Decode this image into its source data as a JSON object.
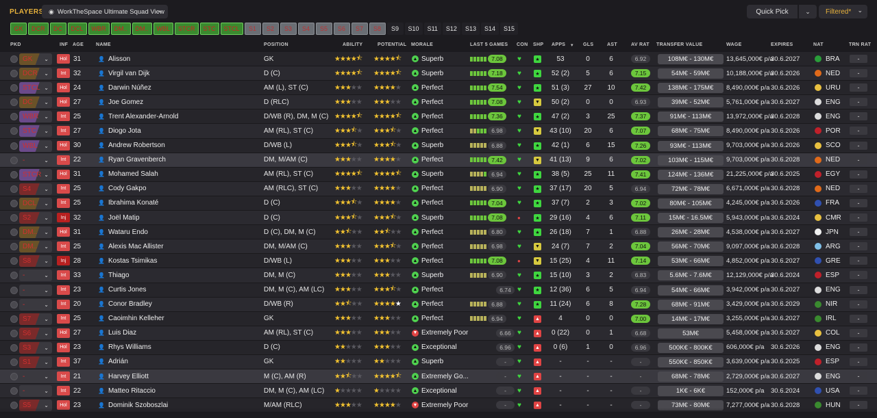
{
  "topbar": {
    "players_label": "PLAYERS",
    "view_name": "WorkTheSpace Ultimate Squad View",
    "quick_pick": "Quick Pick",
    "filtered": "Filtered*"
  },
  "position_filters": [
    {
      "label": "GK",
      "style": "green"
    },
    {
      "label": "DCR",
      "style": "green"
    },
    {
      "label": "DC",
      "style": "green"
    },
    {
      "label": "DCL",
      "style": "green"
    },
    {
      "label": "WBR",
      "style": "green"
    },
    {
      "label": "DM..",
      "style": "green"
    },
    {
      "label": "DM..",
      "style": "green"
    },
    {
      "label": "WBL",
      "style": "green"
    },
    {
      "label": "STCR",
      "style": "green"
    },
    {
      "label": "STC",
      "style": "green"
    },
    {
      "label": "STCL",
      "style": "green"
    },
    {
      "label": "S1",
      "style": "grey"
    },
    {
      "label": "S2",
      "style": "grey"
    },
    {
      "label": "S3",
      "style": "grey"
    },
    {
      "label": "S4",
      "style": "grey"
    },
    {
      "label": "S5",
      "style": "grey"
    },
    {
      "label": "S6",
      "style": "grey"
    },
    {
      "label": "S7",
      "style": "grey"
    },
    {
      "label": "S8",
      "style": "grey"
    },
    {
      "label": "S9",
      "style": "dark"
    },
    {
      "label": "S10",
      "style": "dark"
    },
    {
      "label": "S11",
      "style": "dark"
    },
    {
      "label": "S12",
      "style": "dark"
    },
    {
      "label": "S13",
      "style": "dark"
    },
    {
      "label": "S14",
      "style": "dark"
    },
    {
      "label": "S15",
      "style": "dark"
    }
  ],
  "columns": {
    "pkd": "PKD",
    "inf": "INF",
    "age": "AGE",
    "name": "NAME",
    "position": "POSITION",
    "ability": "ABILITY",
    "potential": "POTENTIAL",
    "morale": "MORALE",
    "last5": "LAST 5 GAMES",
    "con": "CON",
    "shp": "SHP",
    "apps": "APPS",
    "gls": "GLS",
    "ast": "AST",
    "avrat": "AV RAT",
    "tv": "TRANSFER VALUE",
    "wage": "WAGE",
    "expires": "EXPIRES",
    "nat": "NAT",
    "trn": "TRN RAT"
  },
  "players": [
    {
      "pkd": "GK",
      "pkd_style": "gold",
      "inf": "Hol",
      "age": "31",
      "name": "Alisson",
      "position": "GK",
      "ability": 4.5,
      "potential": 4.5,
      "morale": "Superb",
      "morale_type": "g",
      "last5": "ggggg",
      "l5rat": "7.08",
      "l5good": true,
      "con": "♥",
      "shp": "g",
      "apps": "53",
      "gls": "0",
      "ast": "6",
      "avrat": "6.92",
      "avgood": false,
      "tv": "108M€ - 130M€",
      "wage": "13,645,000€ p/a",
      "expires": "30.6.2027",
      "nat": "BRA",
      "flag": "#2a9d3a",
      "trn": "-"
    },
    {
      "pkd": "DCR",
      "pkd_style": "gold",
      "inf": "Int",
      "age": "32",
      "name": "Virgil van Dijk",
      "position": "D (C)",
      "ability": 4.5,
      "potential": 4.5,
      "morale": "Superb",
      "morale_type": "g",
      "last5": "ggggg",
      "l5rat": "7.18",
      "l5good": true,
      "con": "♥",
      "shp": "g",
      "apps": "52 (2)",
      "gls": "5",
      "ast": "6",
      "avrat": "7.15",
      "avgood": true,
      "tv": "54M€ - 59M€",
      "wage": "10,188,000€ p/a",
      "expires": "30.6.2026",
      "nat": "NED",
      "flag": "#e06a1a",
      "trn": "-"
    },
    {
      "pkd": "STCL",
      "pkd_style": "pur",
      "inf": "Hol",
      "age": "24",
      "name": "Darwin Núñez",
      "position": "AM (L), ST (C)",
      "ability": 3,
      "potential": 4,
      "morale": "Perfect",
      "morale_type": "g",
      "last5": "ggggg",
      "l5rat": "7.54",
      "l5good": true,
      "con": "♥",
      "shp": "g",
      "apps": "51 (3)",
      "gls": "27",
      "ast": "10",
      "avrat": "7.42",
      "avgood": true,
      "tv": "138M€ - 175M€",
      "wage": "8,490,000€ p/a",
      "expires": "30.6.2026",
      "nat": "URU",
      "flag": "#e8c040",
      "trn": "-"
    },
    {
      "pkd": "DC",
      "pkd_style": "gold",
      "inf": "Hol",
      "age": "27",
      "name": "Joe Gomez",
      "position": "D (RLC)",
      "ability": 3,
      "potential": 3,
      "morale": "Perfect",
      "morale_type": "g",
      "last5": "ggggg",
      "l5rat": "7.08",
      "l5good": true,
      "con": "♥",
      "shp": "y",
      "apps": "50 (2)",
      "gls": "0",
      "ast": "0",
      "avrat": "6.93",
      "avgood": false,
      "tv": "39M€ - 52M€",
      "wage": "5,761,000€ p/a",
      "expires": "30.6.2027",
      "nat": "ENG",
      "flag": "#dcdcdc",
      "trn": "-"
    },
    {
      "pkd": "WBR",
      "pkd_style": "pur",
      "inf": "Int",
      "age": "25",
      "name": "Trent Alexander-Arnold",
      "position": "D/WB (R), DM, M (C)",
      "ability": 4.5,
      "potential": 4.5,
      "morale": "Perfect",
      "morale_type": "g",
      "last5": "ggggg",
      "l5rat": "7.36",
      "l5good": true,
      "con": "♥",
      "shp": "g",
      "apps": "47 (2)",
      "gls": "3",
      "ast": "25",
      "avrat": "7.37",
      "avgood": true,
      "tv": "91M€ - 113M€",
      "wage": "13,972,000€ p/a",
      "expires": "30.6.2028",
      "nat": "ENG",
      "flag": "#dcdcdc",
      "trn": "-"
    },
    {
      "pkd": "STC",
      "pkd_style": "pur",
      "inf": "Int",
      "age": "27",
      "name": "Diogo Jota",
      "position": "AM (RL), ST (C)",
      "ability": 3.5,
      "potential": 3.5,
      "morale": "Perfect",
      "morale_type": "g",
      "last5": "yyggg",
      "l5rat": "6.98",
      "l5good": false,
      "con": "♥",
      "shp": "y",
      "apps": "43 (10)",
      "gls": "20",
      "ast": "6",
      "avrat": "7.07",
      "avgood": true,
      "tv": "68M€ - 75M€",
      "wage": "8,490,000€ p/a",
      "expires": "30.6.2026",
      "nat": "POR",
      "flag": "#c0202a",
      "trn": "-"
    },
    {
      "pkd": "WBL",
      "pkd_style": "pur",
      "inf": "Hol",
      "age": "30",
      "name": "Andrew Robertson",
      "position": "D/WB (L)",
      "ability": 3.5,
      "potential": 3.5,
      "morale": "Superb",
      "morale_type": "g",
      "last5": "yyyyy",
      "l5rat": "6.88",
      "l5good": false,
      "con": "♥",
      "shp": "g",
      "apps": "42 (1)",
      "gls": "6",
      "ast": "15",
      "avrat": "7.26",
      "avgood": true,
      "tv": "93M€ - 113M€",
      "wage": "9,703,000€ p/a",
      "expires": "30.6.2026",
      "nat": "SCO",
      "flag": "#e8c040",
      "trn": "-"
    },
    {
      "pkd": "-",
      "pkd_style": "none",
      "inf": "Int",
      "age": "22",
      "name": "Ryan Gravenberch",
      "position": "DM, M/AM (C)",
      "ability": 3,
      "potential": 4,
      "morale": "Perfect",
      "morale_type": "g",
      "last5": "ggggg",
      "l5rat": "7.42",
      "l5good": true,
      "con": "♥",
      "shp": "y",
      "apps": "41 (13)",
      "gls": "9",
      "ast": "6",
      "avrat": "7.02",
      "avgood": true,
      "tv": "103M€ - 115M€",
      "wage": "9,703,000€ p/a",
      "expires": "30.6.2028",
      "nat": "NED",
      "flag": "#e06a1a",
      "trn": "-",
      "highlight": true
    },
    {
      "pkd": "STCR",
      "pkd_style": "pur",
      "inf": "Hol",
      "age": "31",
      "name": "Mohamed Salah",
      "position": "AM (RL), ST (C)",
      "ability": 4.5,
      "potential": 4.5,
      "morale": "Superb",
      "morale_type": "g",
      "last5": "yyyyg",
      "l5rat": "6.94",
      "l5good": false,
      "con": "♥",
      "shp": "g",
      "apps": "38 (5)",
      "gls": "25",
      "ast": "11",
      "avrat": "7.41",
      "avgood": true,
      "tv": "124M€ - 136M€",
      "wage": "21,225,000€ p/a",
      "expires": "30.6.2025",
      "nat": "EGY",
      "flag": "#c0202a",
      "trn": "-"
    },
    {
      "pkd": "S4",
      "pkd_style": "red",
      "inf": "Int",
      "age": "25",
      "name": "Cody Gakpo",
      "position": "AM (RLC), ST (C)",
      "ability": 3,
      "potential": 4,
      "morale": "Perfect",
      "morale_type": "g",
      "last5": "yyyyy",
      "l5rat": "6.90",
      "l5good": false,
      "con": "♥",
      "shp": "g",
      "apps": "37 (17)",
      "gls": "20",
      "ast": "5",
      "avrat": "6.94",
      "avgood": false,
      "tv": "72M€ - 78M€",
      "wage": "6,671,000€ p/a",
      "expires": "30.6.2028",
      "nat": "NED",
      "flag": "#e06a1a",
      "trn": "-"
    },
    {
      "pkd": "DCL",
      "pkd_style": "gold",
      "inf": "Int",
      "age": "25",
      "name": "Ibrahima Konaté",
      "position": "D (C)",
      "ability": 3.5,
      "potential": 4,
      "morale": "Perfect",
      "morale_type": "g",
      "last5": "ggggg",
      "l5rat": "7.04",
      "l5good": true,
      "con": "♥",
      "shp": "g",
      "apps": "37 (7)",
      "gls": "2",
      "ast": "3",
      "avrat": "7.02",
      "avgood": true,
      "tv": "80M€ - 105M€",
      "wage": "4,245,000€ p/a",
      "expires": "30.6.2026",
      "nat": "FRA",
      "flag": "#3050b0",
      "trn": "-"
    },
    {
      "pkd": "S2",
      "pkd_style": "red",
      "inf": "Inj",
      "age": "32",
      "name": "Joël Matip",
      "position": "D (C)",
      "ability": 3.5,
      "potential": 3.5,
      "morale": "Superb",
      "morale_type": "g",
      "last5": "ggggg",
      "l5rat": "7.08",
      "l5good": true,
      "con": "●",
      "shp": "g",
      "apps": "29 (16)",
      "gls": "4",
      "ast": "6",
      "avrat": "7.11",
      "avgood": true,
      "tv": "15M€ - 16.5M€",
      "wage": "5,943,000€ p/a",
      "expires": "30.6.2024",
      "nat": "CMR",
      "flag": "#e8c040",
      "trn": "-"
    },
    {
      "pkd": "DM..",
      "pkd_style": "gold",
      "inf": "Hol",
      "age": "31",
      "name": "Wataru Endo",
      "position": "D (C), DM, M (C)",
      "ability": 2.5,
      "potential": 2.5,
      "morale": "Perfect",
      "morale_type": "g",
      "last5": "yyyyy",
      "l5rat": "6.80",
      "l5good": false,
      "con": "♥",
      "shp": "g",
      "apps": "26 (18)",
      "gls": "7",
      "ast": "1",
      "avrat": "6.88",
      "avgood": false,
      "tv": "26M€ - 28M€",
      "wage": "4,538,000€ p/a",
      "expires": "30.6.2027",
      "nat": "JPN",
      "flag": "#f0f0f0",
      "trn": "-"
    },
    {
      "pkd": "DM..",
      "pkd_style": "gold",
      "inf": "Int",
      "age": "25",
      "name": "Alexis Mac Allister",
      "position": "DM, M/AM (C)",
      "ability": 3,
      "potential": 3.5,
      "morale": "Perfect",
      "morale_type": "g",
      "last5": "yyyyy",
      "l5rat": "6.98",
      "l5good": false,
      "con": "♥",
      "shp": "y",
      "apps": "24 (7)",
      "gls": "7",
      "ast": "2",
      "avrat": "7.04",
      "avgood": true,
      "tv": "56M€ - 70M€",
      "wage": "9,097,000€ p/a",
      "expires": "30.6.2028",
      "nat": "ARG",
      "flag": "#80c0e8",
      "trn": "-"
    },
    {
      "pkd": "S8",
      "pkd_style": "red",
      "inf": "Inj",
      "age": "28",
      "name": "Kostas Tsimikas",
      "position": "D/WB (L)",
      "ability": 3,
      "potential": 3,
      "morale": "Perfect",
      "morale_type": "g",
      "last5": "ggggg",
      "l5rat": "7.08",
      "l5good": true,
      "con": "●",
      "shp": "y",
      "apps": "15 (25)",
      "gls": "4",
      "ast": "11",
      "avrat": "7.14",
      "avgood": true,
      "tv": "53M€ - 66M€",
      "wage": "4,852,000€ p/a",
      "expires": "30.6.2027",
      "nat": "GRE",
      "flag": "#3050b0",
      "trn": "-"
    },
    {
      "pkd": "-",
      "pkd_style": "none",
      "inf": "Int",
      "age": "33",
      "name": "Thiago",
      "position": "DM, M (C)",
      "ability": 3,
      "potential": 3,
      "morale": "Superb",
      "morale_type": "g",
      "last5": "yyyyy",
      "l5rat": "6.90",
      "l5good": false,
      "con": "♥",
      "shp": "g",
      "apps": "15 (10)",
      "gls": "3",
      "ast": "2",
      "avrat": "6.83",
      "avgood": false,
      "tv": "5.6M€ - 7.6M€",
      "wage": "12,129,000€ p/a",
      "expires": "30.6.2024",
      "nat": "ESP",
      "flag": "#c0202a",
      "trn": "-"
    },
    {
      "pkd": "-",
      "pkd_style": "none",
      "inf": "Int",
      "age": "23",
      "name": "Curtis Jones",
      "position": "DM, M (C), AM (LC)",
      "ability": 3,
      "potential": 3.5,
      "morale": "Perfect",
      "morale_type": "g",
      "last5": "",
      "l5rat": "6.74",
      "l5good": false,
      "con": "♥",
      "shp": "g",
      "apps": "12 (36)",
      "gls": "6",
      "ast": "5",
      "avrat": "6.94",
      "avgood": false,
      "tv": "54M€ - 66M€",
      "wage": "3,942,000€ p/a",
      "expires": "30.6.2027",
      "nat": "ENG",
      "flag": "#dcdcdc",
      "trn": "-"
    },
    {
      "pkd": "-",
      "pkd_style": "none",
      "inf": "Int",
      "age": "20",
      "name": "Conor Bradley",
      "position": "D/WB (R)",
      "ability": 2.5,
      "potential": 4,
      "morale": "Perfect",
      "morale_type": "g",
      "last5": "yyyyy",
      "l5rat": "6.88",
      "l5good": false,
      "con": "♥",
      "shp": "g",
      "apps": "11 (24)",
      "gls": "6",
      "ast": "8",
      "avrat": "7.28",
      "avgood": true,
      "tv": "68M€ - 91M€",
      "wage": "3,429,000€ p/a",
      "expires": "30.6.2029",
      "nat": "NIR",
      "flag": "#3a8a2f",
      "trn": "-",
      "pot_white": true
    },
    {
      "pkd": "S7",
      "pkd_style": "red",
      "inf": "Int",
      "age": "25",
      "name": "Caoimhin Kelleher",
      "position": "GK",
      "ability": 3,
      "potential": 3,
      "morale": "Perfect",
      "morale_type": "g",
      "last5": "yyyyy",
      "l5rat": "6.94",
      "l5good": false,
      "con": "♥",
      "shp": "r",
      "apps": "4",
      "gls": "0",
      "ast": "0",
      "avrat": "7.00",
      "avgood": true,
      "tv": "14M€ - 17M€",
      "wage": "3,255,000€ p/a",
      "expires": "30.6.2027",
      "nat": "IRL",
      "flag": "#3a8a2f",
      "trn": "-"
    },
    {
      "pkd": "S6",
      "pkd_style": "red",
      "inf": "Hol",
      "age": "27",
      "name": "Luis Diaz",
      "position": "AM (RL), ST (C)",
      "ability": 3,
      "potential": 3,
      "morale": "Extremely Poor",
      "morale_type": "r",
      "last5": "",
      "l5rat": "6.66",
      "l5good": false,
      "con": "♥",
      "shp": "r",
      "apps": "0 (22)",
      "gls": "0",
      "ast": "1",
      "avrat": "6.68",
      "avgood": false,
      "tv": "53M€",
      "wage": "5,458,000€ p/a",
      "expires": "30.6.2027",
      "nat": "COL",
      "flag": "#e8c040",
      "trn": "-"
    },
    {
      "pkd": "S3",
      "pkd_style": "red",
      "inf": "Hol",
      "age": "23",
      "name": "Rhys Williams",
      "position": "D (C)",
      "ability": 2,
      "potential": 3,
      "morale": "Exceptional",
      "morale_type": "g",
      "last5": "",
      "l5rat": "6.96",
      "l5good": false,
      "con": "♥",
      "shp": "r",
      "apps": "0 (6)",
      "gls": "1",
      "ast": "0",
      "avrat": "6.96",
      "avgood": false,
      "tv": "500K€ - 800K€",
      "wage": "606,000€ p/a",
      "expires": "30.6.2026",
      "nat": "ENG",
      "flag": "#dcdcdc",
      "trn": "-"
    },
    {
      "pkd": "S1",
      "pkd_style": "red",
      "inf": "Int",
      "age": "37",
      "name": "Adrián",
      "position": "GK",
      "ability": 2,
      "potential": 2,
      "morale": "Superb",
      "morale_type": "g",
      "last5": "",
      "l5rat": "-",
      "l5good": false,
      "con": "♥",
      "shp": "r",
      "apps": "-",
      "gls": "-",
      "ast": "-",
      "avrat": "-",
      "avgood": false,
      "tv": "550K€ - 850K€",
      "wage": "3,639,000€ p/a",
      "expires": "30.6.2025",
      "nat": "ESP",
      "flag": "#c0202a",
      "trn": "-"
    },
    {
      "pkd": "-",
      "pkd_style": "none",
      "inf": "Int",
      "age": "21",
      "name": "Harvey Elliott",
      "position": "M (C), AM (R)",
      "ability": 2.5,
      "potential": 4.5,
      "morale": "Extremely Go...",
      "morale_type": "g",
      "last5": "",
      "l5rat": "-",
      "l5good": false,
      "con": "♥",
      "shp": "r",
      "apps": "-",
      "gls": "-",
      "ast": "-",
      "avrat": "-",
      "avgood": false,
      "tv": "68M€ - 78M€",
      "wage": "2,729,000€ p/a",
      "expires": "30.6.2027",
      "nat": "ENG",
      "flag": "#dcdcdc",
      "trn": "-",
      "highlight": true
    },
    {
      "pkd": "-",
      "pkd_style": "none",
      "inf": "Int",
      "age": "22",
      "name": "Matteo Ritaccio",
      "position": "DM, M (C), AM (LC)",
      "ability": 1,
      "potential": 1,
      "morale": "Exceptional",
      "morale_type": "g",
      "last5": "",
      "l5rat": "-",
      "l5good": false,
      "con": "♥",
      "shp": "r",
      "apps": "-",
      "gls": "-",
      "ast": "-",
      "avrat": "-",
      "avgood": false,
      "tv": "1K€ - 6K€",
      "wage": "152,000€ p/a",
      "expires": "30.6.2024",
      "nat": "USA",
      "flag": "#3050b0",
      "trn": "-"
    },
    {
      "pkd": "S5",
      "pkd_style": "red",
      "inf": "Hol",
      "age": "23",
      "name": "Dominik Szoboszlai",
      "position": "M/AM (RLC)",
      "ability": 3,
      "potential": 4,
      "morale": "Extremely Poor",
      "morale_type": "r",
      "last5": "",
      "l5rat": "-",
      "l5good": false,
      "con": "♥",
      "shp": "r",
      "apps": "-",
      "gls": "-",
      "ast": "-",
      "avrat": "-",
      "avgood": false,
      "tv": "73M€ - 80M€",
      "wage": "7,277,000€ p/a",
      "expires": "30.6.2028",
      "nat": "HUN",
      "flag": "#3a8a2f",
      "trn": "-"
    }
  ]
}
